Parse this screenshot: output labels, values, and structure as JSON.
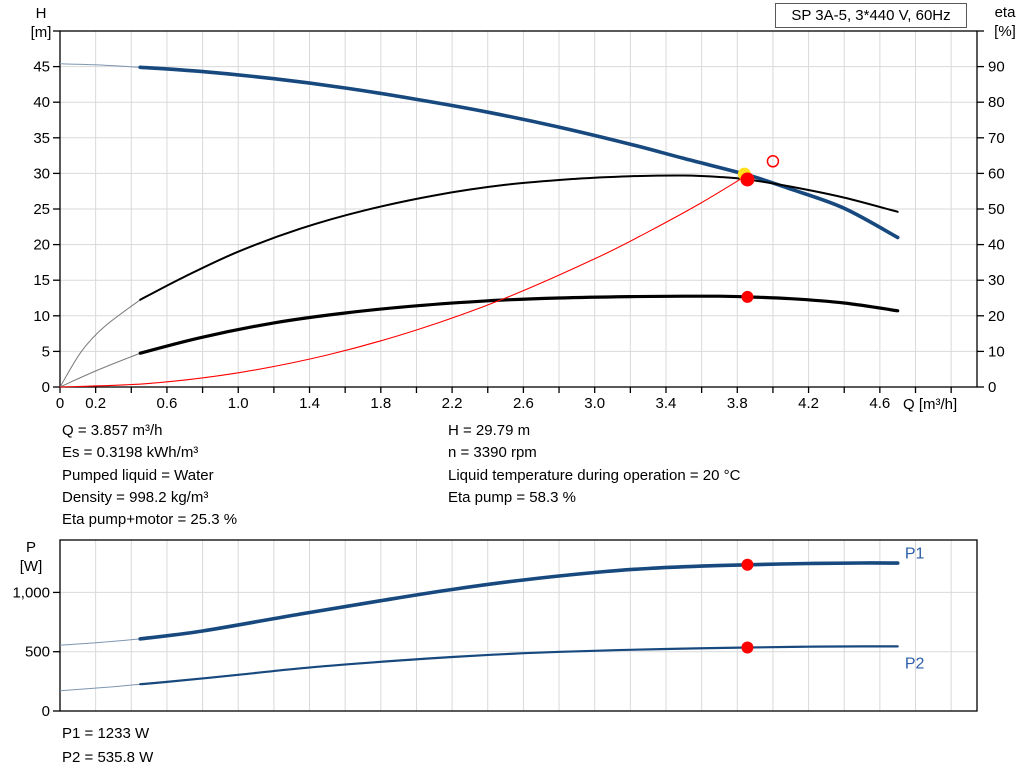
{
  "header": {
    "title": "SP 3A-5, 3*440 V, 60Hz"
  },
  "axis_corner_labels": {
    "h1": "H",
    "h2": "[m]",
    "eta1": "eta",
    "eta2": "[%]",
    "p1": "P",
    "p2": "[W]",
    "q_title": "Q [m³/h]"
  },
  "operating_point_info": {
    "left": [
      "Q = 3.857 m³/h",
      "Es = 0.3198 kWh/m³",
      "Pumped liquid = Water",
      "Density = 998.2 kg/m³",
      "Eta pump+motor = 25.3 %"
    ],
    "right": [
      "H = 29.79 m",
      "n = 3390 rpm",
      "Liquid temperature during operation = 20 °C",
      "Eta pump = 58.3 %"
    ],
    "power": [
      "P1 = 1233 W",
      "P2 = 535.8 W"
    ]
  },
  "colors": {
    "curve_navy": "#17497e",
    "curve_black": "#000000",
    "curve_red": "#ff0000",
    "marker_red": "#ff0000",
    "marker_yellow": "#ffe01a",
    "label_blue": "#2b5ea7",
    "grid": "#d9d9d9",
    "axis": "#000000",
    "intro_navy": "#7d95b0",
    "intro_gray": "#7a7a7a"
  },
  "chart_data": [
    {
      "type": "line",
      "title": "SP 3A-5, 3*440 V, 60Hz",
      "x": {
        "label": "Q [m³/h]",
        "min": 0,
        "max": 5.145,
        "grid_step": 0.2,
        "tick_step": 0.2,
        "show_ticks": true,
        "tick_labels": [
          [
            0,
            "0"
          ],
          [
            0.2,
            "0.2"
          ],
          [
            0.6,
            "0.6"
          ],
          [
            1,
            "1.0"
          ],
          [
            1.4,
            "1.4"
          ],
          [
            1.8,
            "1.8"
          ],
          [
            2.2,
            "2.2"
          ],
          [
            2.6,
            "2.6"
          ],
          [
            3,
            "3.0"
          ],
          [
            3.4,
            "3.4"
          ],
          [
            3.8,
            "3.8"
          ],
          [
            4.2,
            "4.2"
          ],
          [
            4.6,
            "4.6"
          ]
        ]
      },
      "y_left": {
        "label": "H [m]",
        "min": 0,
        "max": 50,
        "grid_step": 5,
        "tick_step": 5,
        "tick_labels": [
          [
            0,
            "0"
          ],
          [
            5,
            "5"
          ],
          [
            10,
            "10"
          ],
          [
            15,
            "15"
          ],
          [
            20,
            "20"
          ],
          [
            25,
            "25"
          ],
          [
            30,
            "30"
          ],
          [
            35,
            "35"
          ],
          [
            40,
            "40"
          ],
          [
            45,
            "45"
          ]
        ]
      },
      "y_right": {
        "label": "eta [%]",
        "min": 0,
        "max": 100,
        "tick_step": 10,
        "tick_labels": [
          [
            0,
            "0"
          ],
          [
            10,
            "10"
          ],
          [
            20,
            "20"
          ],
          [
            30,
            "30"
          ],
          [
            40,
            "40"
          ],
          [
            50,
            "50"
          ],
          [
            60,
            "60"
          ],
          [
            70,
            "70"
          ],
          [
            80,
            "80"
          ],
          [
            90,
            "90"
          ]
        ]
      },
      "series": [
        {
          "name": "pump-curve-H",
          "axis": "left",
          "color": "#17497e",
          "width": 3.6,
          "intro_until": 0.45,
          "intro_color": "#7d95b0",
          "points": [
            [
              0,
              45.4
            ],
            [
              0.25,
              45.2
            ],
            [
              0.45,
              44.9
            ],
            [
              0.8,
              44.3
            ],
            [
              1.2,
              43.3
            ],
            [
              1.6,
              42.0
            ],
            [
              2.0,
              40.4
            ],
            [
              2.4,
              38.6
            ],
            [
              2.8,
              36.5
            ],
            [
              3.2,
              34.1
            ],
            [
              3.5,
              32.1
            ],
            [
              3.857,
              29.79
            ],
            [
              4.1,
              27.8
            ],
            [
              4.4,
              25.1
            ],
            [
              4.7,
              21.0
            ]
          ]
        },
        {
          "name": "eta-pump-curve",
          "axis": "right",
          "color": "#000000",
          "width": 2,
          "intro_until": 0.45,
          "intro_color": "#7a7a7a",
          "points": [
            [
              0,
              0
            ],
            [
              0.12,
              10
            ],
            [
              0.25,
              17
            ],
            [
              0.45,
              24.5
            ],
            [
              0.7,
              31
            ],
            [
              1.0,
              38
            ],
            [
              1.35,
              44.5
            ],
            [
              1.7,
              49.5
            ],
            [
              2.1,
              53.8
            ],
            [
              2.5,
              56.8
            ],
            [
              2.9,
              58.5
            ],
            [
              3.2,
              59.2
            ],
            [
              3.5,
              59.4
            ],
            [
              3.7,
              59.0
            ],
            [
              3.857,
              58.3
            ],
            [
              4.1,
              56.3
            ],
            [
              4.4,
              53.2
            ],
            [
              4.7,
              49.2
            ]
          ]
        },
        {
          "name": "eta-pump-motor-curve",
          "axis": "right",
          "color": "#000000",
          "width": 3.2,
          "intro_until": 0.45,
          "intro_color": "#7a7a7a",
          "points": [
            [
              0,
              0
            ],
            [
              0.2,
              4.5
            ],
            [
              0.45,
              9.5
            ],
            [
              0.8,
              14.0
            ],
            [
              1.2,
              18.0
            ],
            [
              1.6,
              20.8
            ],
            [
              2.0,
              22.8
            ],
            [
              2.4,
              24.2
            ],
            [
              2.8,
              25.0
            ],
            [
              3.2,
              25.4
            ],
            [
              3.5,
              25.5
            ],
            [
              3.7,
              25.5
            ],
            [
              3.857,
              25.3
            ],
            [
              4.1,
              24.8
            ],
            [
              4.4,
              23.6
            ],
            [
              4.7,
              21.4
            ]
          ]
        },
        {
          "name": "system-curve",
          "axis": "left",
          "color": "#ff0000",
          "width": 1.1,
          "intro_until": 0,
          "intro_color": "#ff0000",
          "points": [
            [
              0,
              0
            ],
            [
              0.5,
              0.5
            ],
            [
              1.0,
              2.0
            ],
            [
              1.5,
              4.5
            ],
            [
              2.0,
              8.0
            ],
            [
              2.5,
              12.5
            ],
            [
              3.0,
              18.0
            ],
            [
              3.3,
              21.8
            ],
            [
              3.6,
              25.9
            ],
            [
              3.857,
              29.79
            ]
          ]
        }
      ],
      "markers": [
        {
          "name": "duty-point-qh",
          "q": 3.84,
          "value": 29.9,
          "axis": "left",
          "style": "filled",
          "color": "#ffe01a",
          "r": 6.5
        },
        {
          "name": "operating-point-eta-pump",
          "q": 3.857,
          "value": 58.3,
          "axis": "right",
          "style": "filled",
          "color": "#ff0000",
          "r": 7
        },
        {
          "name": "operating-point-eta-pump-motor",
          "q": 3.857,
          "value": 25.3,
          "axis": "right",
          "style": "filled",
          "color": "#ff0000",
          "r": 6
        },
        {
          "name": "rated-duty-point",
          "q": 4.0,
          "value": 31.7,
          "axis": "left",
          "style": "open",
          "color": "#ff0000",
          "r": 5.5
        }
      ],
      "annotations": []
    },
    {
      "type": "line",
      "title": "Power curves",
      "x": {
        "label": "Q [m³/h]",
        "min": 0,
        "max": 5.145,
        "grid_step": 0.2,
        "tick_step": 0.2,
        "show_ticks": false,
        "tick_labels": []
      },
      "y_left": {
        "label": "P [W]",
        "min": 0,
        "max": 1442,
        "grid_step": 500,
        "tick_step": 500,
        "tick_labels": [
          [
            0,
            "0"
          ],
          [
            500,
            "500"
          ],
          [
            1000,
            "1,000"
          ]
        ]
      },
      "series": [
        {
          "name": "power-curve-P1",
          "axis": "left",
          "color": "#17497e",
          "width": 3.6,
          "intro_until": 0.45,
          "intro_color": "#7d95b0",
          "points": [
            [
              0,
              555
            ],
            [
              0.2,
              575
            ],
            [
              0.45,
              608
            ],
            [
              0.8,
              675
            ],
            [
              1.35,
              818
            ],
            [
              1.8,
              930
            ],
            [
              2.2,
              1025
            ],
            [
              2.6,
              1105
            ],
            [
              3.0,
              1168
            ],
            [
              3.3,
              1202
            ],
            [
              3.6,
              1222
            ],
            [
              3.857,
              1233
            ],
            [
              4.2,
              1244
            ],
            [
              4.5,
              1248
            ],
            [
              4.7,
              1247
            ]
          ]
        },
        {
          "name": "power-curve-P2",
          "axis": "left",
          "color": "#17497e",
          "width": 2.2,
          "intro_until": 0.45,
          "intro_color": "#7d95b0",
          "points": [
            [
              0,
              170
            ],
            [
              0.3,
              205
            ],
            [
              0.45,
              226
            ],
            [
              0.6,
              245
            ],
            [
              1.0,
              305
            ],
            [
              1.35,
              360
            ],
            [
              1.8,
              415
            ],
            [
              2.2,
              455
            ],
            [
              2.6,
              487
            ],
            [
              3.0,
              508
            ],
            [
              3.4,
              523
            ],
            [
              3.857,
              535.8
            ],
            [
              4.2,
              542
            ],
            [
              4.5,
              545
            ],
            [
              4.7,
              545
            ]
          ]
        }
      ],
      "markers": [
        {
          "name": "operating-point-p1",
          "q": 3.857,
          "value": 1233,
          "axis": "left",
          "style": "filled",
          "color": "#ff0000",
          "r": 6
        },
        {
          "name": "operating-point-p2",
          "q": 3.857,
          "value": 535.8,
          "axis": "left",
          "style": "filled",
          "color": "#ff0000",
          "r": 6
        }
      ],
      "annotations": [
        {
          "text": "P1",
          "q": 4.74,
          "value": 1330,
          "color": "#2b5ea7"
        },
        {
          "text": "P2",
          "q": 4.74,
          "value": 400,
          "color": "#2b5ea7"
        }
      ]
    }
  ]
}
